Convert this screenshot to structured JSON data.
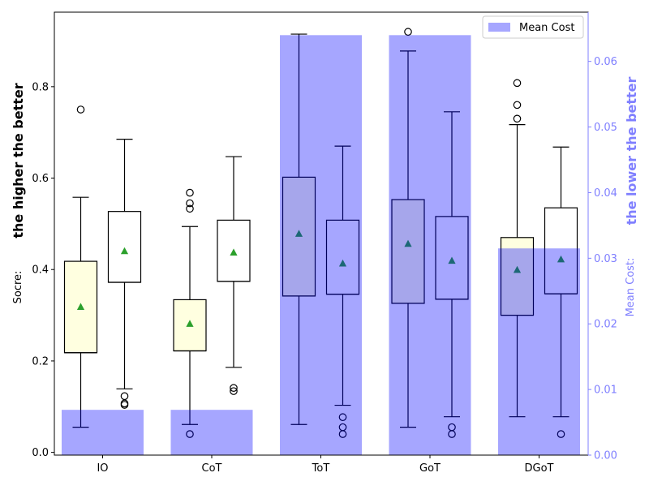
{
  "chart_data": {
    "type": "box+bar",
    "categories": [
      "IO",
      "CoT",
      "ToT",
      "GoT",
      "DGoT"
    ],
    "left_axis": {
      "label": "Socre:",
      "annotation": "the higher the better",
      "ylim": [
        -0.006,
        0.963
      ],
      "ticks": [
        0.0,
        0.2,
        0.4,
        0.6,
        0.8
      ],
      "tick_labels": [
        "0.0",
        "0.2",
        "0.4",
        "0.6",
        "0.8"
      ]
    },
    "right_axis": {
      "label": "Mean Cost:",
      "annotation": "the lower the better",
      "ylim": [
        0.0,
        0.0675
      ],
      "ticks": [
        0.0,
        0.01,
        0.02,
        0.03,
        0.04,
        0.05,
        0.06
      ],
      "tick_labels": [
        "0.00",
        "0.01",
        "0.02",
        "0.03",
        "0.04",
        "0.05",
        "0.06"
      ],
      "color": "#7f7fff"
    },
    "legend": {
      "label": "Mean Cost",
      "position": "top-right"
    },
    "bars": [
      {
        "category": "IO",
        "value": 0.0069
      },
      {
        "category": "CoT",
        "value": 0.0069
      },
      {
        "category": "ToT",
        "value": 0.064
      },
      {
        "category": "GoT",
        "value": 0.064
      },
      {
        "category": "DGoT",
        "value": 0.0315
      }
    ],
    "boxes": [
      {
        "category": "IO",
        "position": "left",
        "fill": "#ffffe0",
        "whislo": 0.055,
        "q1": 0.218,
        "med": 0.218,
        "q3": 0.418,
        "whishi": 0.558,
        "mean": 0.318,
        "fliers": [
          0.75
        ]
      },
      {
        "category": "IO",
        "position": "right",
        "fill": "#ffffff",
        "whislo": 0.139,
        "q1": 0.372,
        "med": 0.372,
        "q3": 0.527,
        "whishi": 0.685,
        "mean": 0.44,
        "fliers": [
          0.123,
          0.107,
          0.104
        ]
      },
      {
        "category": "CoT",
        "position": "left",
        "fill": "#ffffe0",
        "whislo": 0.061,
        "q1": 0.222,
        "med": 0.222,
        "q3": 0.334,
        "whishi": 0.494,
        "mean": 0.281,
        "fliers": [
          0.04,
          0.533,
          0.545,
          0.568
        ]
      },
      {
        "category": "CoT",
        "position": "right",
        "fill": "#ffffff",
        "whislo": 0.186,
        "q1": 0.374,
        "med": 0.374,
        "q3": 0.508,
        "whishi": 0.647,
        "mean": 0.437,
        "fliers": [
          0.141,
          0.134
        ]
      },
      {
        "category": "ToT",
        "position": "left",
        "fill": "#ffffe0",
        "whislo": 0.061,
        "q1": 0.342,
        "med": 0.342,
        "q3": 0.602,
        "whishi": 0.915,
        "mean": 0.478,
        "fliers": []
      },
      {
        "category": "ToT",
        "position": "right",
        "fill": "#ffffff",
        "whislo": 0.103,
        "q1": 0.346,
        "med": 0.346,
        "q3": 0.508,
        "whishi": 0.67,
        "mean": 0.413,
        "fliers": [
          0.077,
          0.055,
          0.04
        ]
      },
      {
        "category": "GoT",
        "position": "left",
        "fill": "#ffffe0",
        "whislo": 0.055,
        "q1": 0.326,
        "med": 0.326,
        "q3": 0.553,
        "whishi": 0.878,
        "mean": 0.456,
        "fliers": [
          0.92
        ]
      },
      {
        "category": "GoT",
        "position": "right",
        "fill": "#ffffff",
        "whislo": 0.078,
        "q1": 0.335,
        "med": 0.335,
        "q3": 0.516,
        "whishi": 0.745,
        "mean": 0.419,
        "fliers": [
          0.055,
          0.04
        ]
      },
      {
        "category": "DGoT",
        "position": "left",
        "fill": "#ffffe0",
        "whislo": 0.078,
        "q1": 0.3,
        "med": 0.3,
        "q3": 0.47,
        "whishi": 0.717,
        "mean": 0.399,
        "fliers": [
          0.73,
          0.76,
          0.808
        ]
      },
      {
        "category": "DGoT",
        "position": "right",
        "fill": "#ffffff",
        "whislo": 0.078,
        "q1": 0.347,
        "med": 0.347,
        "q3": 0.535,
        "whishi": 0.668,
        "mean": 0.422,
        "fliers": [
          0.04
        ]
      }
    ],
    "colors": {
      "bar": "#0000ff",
      "bar_opacity": 0.35,
      "mean_marker": "#2ca02c",
      "box_edge": "#000000"
    }
  }
}
